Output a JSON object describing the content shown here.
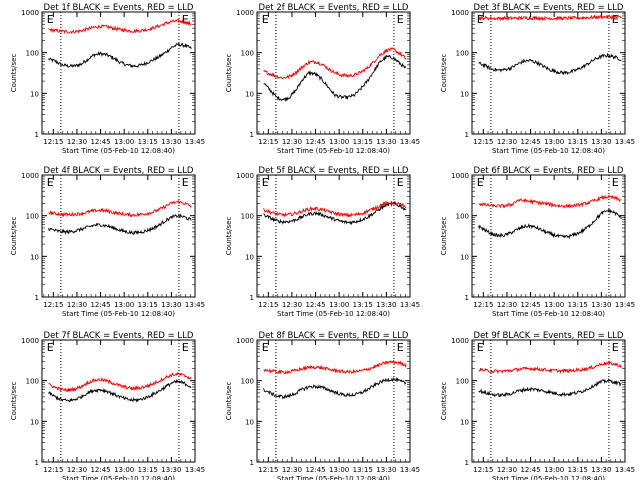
{
  "figure": {
    "background": "#ffffff",
    "axis_color": "#000000",
    "events_color": "#000000",
    "lld_color": "#ff0000"
  },
  "chart_data": [
    {
      "type": "line",
      "title": "Det 1f BLACK = Events, RED = LLD",
      "xlabel": "Start Time (05-Feb-10 12:08:40)",
      "ylabel": "Counts/sec",
      "ylog": true,
      "ylim": [
        1,
        1000
      ],
      "yticks": [
        "1",
        "10",
        "100",
        "1000"
      ],
      "xlim": [
        12.13,
        13.75
      ],
      "xticks": [
        "12:15",
        "12:30",
        "12:45",
        "13:00",
        "13:15",
        "13:30",
        "13:45"
      ],
      "vlines": [
        12.33,
        13.58
      ],
      "markers": [
        {
          "label": "E",
          "x": 12.18
        },
        {
          "label": "E",
          "x": 13.61
        }
      ],
      "series": [
        {
          "name": "Events",
          "color": "#000000",
          "values": [
            70,
            62,
            50,
            47,
            47,
            52,
            68,
            88,
            95,
            88,
            74,
            58,
            50,
            47,
            48,
            55,
            65,
            78,
            100,
            135,
            160,
            150,
            128
          ]
        },
        {
          "name": "LLD",
          "color": "#ff0000",
          "values": [
            370,
            350,
            335,
            325,
            330,
            345,
            380,
            420,
            440,
            430,
            400,
            370,
            350,
            340,
            345,
            365,
            400,
            450,
            520,
            580,
            600,
            560,
            500
          ]
        }
      ]
    },
    {
      "type": "line",
      "title": "Det 2f BLACK = Events, RED = LLD",
      "xlabel": "Start Time (05-Feb-10 12:08:40)",
      "ylabel": "Counts/sec",
      "ylog": true,
      "ylim": [
        1,
        1000
      ],
      "yticks": [
        "1",
        "10",
        "100",
        "1000"
      ],
      "xlim": [
        12.13,
        13.75
      ],
      "xticks": [
        "12:15",
        "12:30",
        "12:45",
        "13:00",
        "13:15",
        "13:30",
        "13:45"
      ],
      "vlines": [
        12.33,
        13.58
      ],
      "markers": [
        {
          "label": "E",
          "x": 12.18
        },
        {
          "label": "E",
          "x": 13.61
        }
      ],
      "series": [
        {
          "name": "Events",
          "color": "#000000",
          "values": [
            18,
            12,
            8,
            7,
            8,
            12,
            22,
            32,
            30,
            22,
            14,
            9,
            8,
            8,
            9,
            13,
            20,
            35,
            60,
            80,
            75,
            55,
            40
          ]
        },
        {
          "name": "LLD",
          "color": "#ff0000",
          "values": [
            35,
            30,
            26,
            24,
            26,
            33,
            45,
            58,
            60,
            52,
            40,
            32,
            28,
            27,
            28,
            33,
            42,
            60,
            90,
            115,
            120,
            95,
            70
          ]
        }
      ]
    },
    {
      "type": "line",
      "title": "Det 3f BLACK = Events, RED = LLD",
      "xlabel": "Start Time (05-Feb-10 12:08:40)",
      "ylabel": "Counts/sec",
      "ylog": true,
      "ylim": [
        1,
        1000
      ],
      "yticks": [
        "1",
        "10",
        "100",
        "1000"
      ],
      "xlim": [
        12.13,
        13.75
      ],
      "xticks": [
        "12:15",
        "12:30",
        "12:45",
        "13:00",
        "13:15",
        "13:30",
        "13:45"
      ],
      "vlines": [
        12.33,
        13.58
      ],
      "markers": [
        {
          "label": "E",
          "x": 12.18
        },
        {
          "label": "E",
          "x": 13.61
        }
      ],
      "series": [
        {
          "name": "Events",
          "color": "#000000",
          "values": [
            55,
            48,
            40,
            37,
            38,
            42,
            52,
            62,
            64,
            57,
            46,
            38,
            34,
            32,
            33,
            37,
            44,
            55,
            70,
            82,
            85,
            78,
            68
          ]
        },
        {
          "name": "LLD",
          "color": "#ff0000",
          "values": [
            720,
            710,
            700,
            695,
            698,
            702,
            708,
            712,
            714,
            710,
            705,
            700,
            698,
            700,
            705,
            710,
            720,
            730,
            745,
            755,
            760,
            750,
            740
          ]
        }
      ]
    },
    {
      "type": "line",
      "title": "Det 4f BLACK = Events, RED = LLD",
      "xlabel": "Start Time (05-Feb-10 12:08:40)",
      "ylabel": "Counts/sec",
      "ylog": true,
      "ylim": [
        1,
        1000
      ],
      "yticks": [
        "1",
        "10",
        "100",
        "1000"
      ],
      "xlim": [
        12.13,
        13.75
      ],
      "xticks": [
        "12:15",
        "12:30",
        "12:45",
        "13:00",
        "13:15",
        "13:30",
        "13:45"
      ],
      "vlines": [
        12.33,
        13.58
      ],
      "markers": [
        {
          "label": "E",
          "x": 12.18
        },
        {
          "label": "E",
          "x": 13.61
        }
      ],
      "series": [
        {
          "name": "Events",
          "color": "#000000",
          "values": [
            48,
            43,
            40,
            40,
            42,
            46,
            52,
            58,
            60,
            56,
            50,
            44,
            40,
            38,
            39,
            42,
            48,
            58,
            75,
            92,
            100,
            92,
            78
          ]
        },
        {
          "name": "LLD",
          "color": "#ff0000",
          "values": [
            120,
            112,
            108,
            106,
            108,
            113,
            122,
            132,
            136,
            130,
            120,
            112,
            106,
            104,
            106,
            112,
            122,
            140,
            170,
            205,
            220,
            200,
            170
          ]
        }
      ]
    },
    {
      "type": "line",
      "title": "Det 5f BLACK = Events, RED = LLD",
      "xlabel": "Start Time (05-Feb-10 12:08:40)",
      "ylabel": "Counts/sec",
      "ylog": true,
      "ylim": [
        1,
        1000
      ],
      "yticks": [
        "1",
        "10",
        "100",
        "1000"
      ],
      "xlim": [
        12.13,
        13.75
      ],
      "xticks": [
        "12:15",
        "12:30",
        "12:45",
        "13:00",
        "13:15",
        "13:30",
        "13:45"
      ],
      "vlines": [
        12.33,
        13.58
      ],
      "markers": [
        {
          "label": "E",
          "x": 12.18
        },
        {
          "label": "E",
          "x": 13.61
        }
      ],
      "series": [
        {
          "name": "Events",
          "color": "#000000",
          "values": [
            105,
            88,
            75,
            70,
            72,
            80,
            95,
            110,
            115,
            106,
            92,
            80,
            72,
            68,
            70,
            78,
            92,
            115,
            150,
            185,
            195,
            175,
            140
          ]
        },
        {
          "name": "LLD",
          "color": "#ff0000",
          "values": [
            140,
            122,
            110,
            104,
            106,
            115,
            130,
            145,
            150,
            140,
            126,
            114,
            106,
            102,
            104,
            112,
            128,
            150,
            180,
            205,
            210,
            190,
            160
          ]
        }
      ]
    },
    {
      "type": "line",
      "title": "Det 6f BLACK = Events, RED = LLD",
      "xlabel": "Start Time (05-Feb-10 12:08:40)",
      "ylabel": "Counts/sec",
      "ylog": true,
      "ylim": [
        1,
        1000
      ],
      "yticks": [
        "1",
        "10",
        "100",
        "1000"
      ],
      "xlim": [
        12.13,
        13.75
      ],
      "xticks": [
        "12:15",
        "12:30",
        "12:45",
        "13:00",
        "13:15",
        "13:30",
        "13:45"
      ],
      "vlines": [
        12.33,
        13.58
      ],
      "markers": [
        {
          "label": "E",
          "x": 12.18
        },
        {
          "label": "E",
          "x": 13.61
        }
      ],
      "series": [
        {
          "name": "Events",
          "color": "#000000",
          "values": [
            55,
            44,
            36,
            32,
            33,
            38,
            46,
            54,
            56,
            50,
            42,
            36,
            32,
            30,
            31,
            35,
            42,
            55,
            80,
            115,
            135,
            118,
            90
          ]
        },
        {
          "name": "LLD",
          "color": "#ff0000",
          "values": [
            200,
            185,
            175,
            172,
            175,
            185,
            240,
            235,
            225,
            212,
            200,
            188,
            178,
            172,
            172,
            178,
            190,
            210,
            240,
            275,
            290,
            270,
            240
          ]
        }
      ]
    },
    {
      "type": "line",
      "title": "Det 7f BLACK = Events, RED = LLD",
      "xlabel": "Start Time (05-Feb-10 12:08:40)",
      "ylabel": "Counts/sec",
      "ylog": true,
      "ylim": [
        1,
        1000
      ],
      "yticks": [
        "1",
        "10",
        "100",
        "1000"
      ],
      "xlim": [
        12.13,
        13.75
      ],
      "xticks": [
        "12:15",
        "12:30",
        "12:45",
        "13:00",
        "13:15",
        "13:30",
        "13:45"
      ],
      "vlines": [
        12.33,
        13.58
      ],
      "markers": [
        {
          "label": "E",
          "x": 12.18
        },
        {
          "label": "E",
          "x": 13.61
        }
      ],
      "series": [
        {
          "name": "Events",
          "color": "#000000",
          "values": [
            50,
            40,
            34,
            32,
            34,
            40,
            50,
            58,
            60,
            55,
            47,
            40,
            35,
            33,
            34,
            38,
            45,
            55,
            70,
            88,
            95,
            85,
            70
          ]
        },
        {
          "name": "LLD",
          "color": "#ff0000",
          "values": [
            80,
            68,
            60,
            58,
            62,
            72,
            88,
            102,
            106,
            98,
            86,
            75,
            68,
            64,
            66,
            72,
            82,
            98,
            118,
            138,
            145,
            132,
            112
          ]
        }
      ]
    },
    {
      "type": "line",
      "title": "Det 8f BLACK = Events, RED = LLD",
      "xlabel": "Start Time (05-Feb-10 12:08:40)",
      "ylabel": "Counts/sec",
      "ylog": true,
      "ylim": [
        1,
        1000
      ],
      "yticks": [
        "1",
        "10",
        "100",
        "1000"
      ],
      "xlim": [
        12.13,
        13.75
      ],
      "xticks": [
        "12:15",
        "12:30",
        "12:45",
        "13:00",
        "13:15",
        "13:30",
        "13:45"
      ],
      "vlines": [
        12.33,
        13.58
      ],
      "markers": [
        {
          "label": "E",
          "x": 12.18
        },
        {
          "label": "E",
          "x": 13.61
        }
      ],
      "series": [
        {
          "name": "Events",
          "color": "#000000",
          "values": [
            60,
            50,
            42,
            40,
            42,
            50,
            62,
            70,
            72,
            68,
            60,
            52,
            46,
            44,
            45,
            50,
            60,
            75,
            92,
            105,
            108,
            98,
            85
          ]
        },
        {
          "name": "LLD",
          "color": "#ff0000",
          "values": [
            190,
            175,
            165,
            162,
            166,
            178,
            198,
            212,
            215,
            205,
            190,
            178,
            168,
            164,
            166,
            174,
            190,
            215,
            250,
            280,
            290,
            270,
            240
          ]
        }
      ]
    },
    {
      "type": "line",
      "title": "Det 9f BLACK = Events, RED = LLD",
      "xlabel": "Start Time (05-Feb-10 12:08:40)",
      "ylabel": "Counts/sec",
      "ylog": true,
      "ylim": [
        1,
        1000
      ],
      "yticks": [
        "1",
        "10",
        "100",
        "1000"
      ],
      "xlim": [
        12.13,
        13.75
      ],
      "xticks": [
        "12:15",
        "12:30",
        "12:45",
        "13:00",
        "13:15",
        "13:30",
        "13:45"
      ],
      "vlines": [
        12.33,
        13.58
      ],
      "markers": [
        {
          "label": "E",
          "x": 12.18
        },
        {
          "label": "E",
          "x": 13.61
        }
      ],
      "series": [
        {
          "name": "Events",
          "color": "#000000",
          "values": [
            58,
            50,
            46,
            44,
            45,
            48,
            55,
            60,
            62,
            60,
            56,
            52,
            48,
            46,
            47,
            50,
            55,
            65,
            80,
            95,
            100,
            92,
            82
          ]
        },
        {
          "name": "LLD",
          "color": "#ff0000",
          "values": [
            190,
            178,
            172,
            170,
            172,
            178,
            188,
            196,
            198,
            194,
            186,
            180,
            176,
            174,
            175,
            180,
            188,
            200,
            225,
            260,
            270,
            255,
            230
          ]
        }
      ]
    }
  ]
}
